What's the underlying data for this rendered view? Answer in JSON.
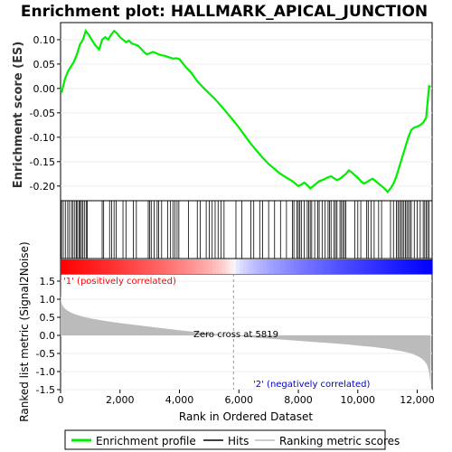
{
  "chart_data": [
    {
      "panel": "enrichment",
      "type": "line",
      "title": "Enrichment plot: HALLMARK_APICAL_JUNCTION",
      "ylabel": "Enrichment score (ES)",
      "xlim": [
        0,
        12500
      ],
      "ylim": [
        -0.23,
        0.135
      ],
      "yticks": [
        0.1,
        0.05,
        0.0,
        -0.05,
        -0.1,
        -0.15,
        -0.2
      ],
      "ytick_labels": [
        "0.10",
        "0.05",
        "0.00",
        "-0.05",
        "-0.10",
        "-0.15",
        "-0.20"
      ],
      "color": "#00ee00",
      "series": [
        {
          "name": "Enrichment profile",
          "x": [
            0,
            50,
            150,
            250,
            350,
            450,
            550,
            650,
            750,
            850,
            950,
            1050,
            1150,
            1300,
            1400,
            1500,
            1600,
            1700,
            1800,
            1900,
            2000,
            2100,
            2200,
            2300,
            2400,
            2500,
            2600,
            2700,
            2800,
            2900,
            3000,
            3100,
            3200,
            3300,
            3400,
            3500,
            3600,
            3700,
            3800,
            3900,
            4000,
            4200,
            4400,
            4600,
            4800,
            5000,
            5200,
            5400,
            5600,
            5819,
            6000,
            6200,
            6400,
            6600,
            6800,
            7000,
            7200,
            7400,
            7600,
            7800,
            7900,
            8000,
            8100,
            8200,
            8300,
            8400,
            8500,
            8600,
            8700,
            8800,
            8900,
            9000,
            9100,
            9200,
            9300,
            9400,
            9500,
            9600,
            9700,
            9800,
            9900,
            10000,
            10100,
            10200,
            10300,
            10400,
            10500,
            10600,
            10700,
            10800,
            10900,
            11000,
            11100,
            11200,
            11300,
            11400,
            11500,
            11600,
            11700,
            11800,
            11900,
            12000,
            12100,
            12200,
            12300,
            12400,
            12450
          ],
          "values": [
            0.0,
            -0.005,
            0.02,
            0.035,
            0.045,
            0.055,
            0.07,
            0.09,
            0.1,
            0.118,
            0.11,
            0.1,
            0.09,
            0.08,
            0.1,
            0.105,
            0.1,
            0.11,
            0.118,
            0.113,
            0.105,
            0.1,
            0.095,
            0.098,
            0.092,
            0.09,
            0.088,
            0.082,
            0.075,
            0.07,
            0.072,
            0.075,
            0.073,
            0.07,
            0.068,
            0.067,
            0.065,
            0.063,
            0.061,
            0.062,
            0.06,
            0.045,
            0.032,
            0.015,
            0.002,
            -0.01,
            -0.022,
            -0.036,
            -0.05,
            -0.066,
            -0.08,
            -0.097,
            -0.113,
            -0.128,
            -0.142,
            -0.155,
            -0.165,
            -0.175,
            -0.183,
            -0.19,
            -0.195,
            -0.2,
            -0.197,
            -0.193,
            -0.198,
            -0.205,
            -0.2,
            -0.195,
            -0.19,
            -0.188,
            -0.185,
            -0.182,
            -0.18,
            -0.184,
            -0.188,
            -0.185,
            -0.18,
            -0.175,
            -0.168,
            -0.172,
            -0.178,
            -0.183,
            -0.19,
            -0.195,
            -0.192,
            -0.188,
            -0.185,
            -0.19,
            -0.195,
            -0.2,
            -0.205,
            -0.212,
            -0.205,
            -0.195,
            -0.18,
            -0.16,
            -0.14,
            -0.12,
            -0.1,
            -0.085,
            -0.08,
            -0.078,
            -0.075,
            -0.07,
            -0.06,
            0.005,
            0.003
          ]
        }
      ]
    },
    {
      "panel": "hits",
      "type": "scatter",
      "xlim": [
        0,
        12500
      ],
      "hit_positions": [
        30,
        90,
        160,
        240,
        300,
        370,
        420,
        480,
        530,
        570,
        620,
        660,
        700,
        750,
        800,
        860,
        900,
        1400,
        1450,
        1650,
        1720,
        1800,
        1870,
        2100,
        2200,
        2450,
        2550,
        2950,
        3000,
        3050,
        3150,
        3250,
        3300,
        3400,
        3600,
        3700,
        3780,
        3850,
        3920,
        3980,
        4300,
        4600,
        4700,
        4900,
        5000,
        5100,
        5200,
        5300,
        5400,
        5500,
        5900,
        6100,
        6400,
        6500,
        6700,
        6800,
        7000,
        7200,
        7400,
        7600,
        7800,
        7850,
        7950,
        8000,
        8050,
        8100,
        8200,
        8300,
        8350,
        8400,
        8450,
        8550,
        8650,
        8700,
        8800,
        8900,
        9000,
        9050,
        9100,
        9200,
        9250,
        9300,
        9400,
        9450,
        9500,
        9550,
        9600,
        9900,
        10000,
        10100,
        10300,
        10350,
        10450,
        10550,
        10700,
        10800,
        11100,
        11200,
        11300,
        11350,
        11400,
        11450,
        11500,
        11550,
        11600,
        11650,
        11700,
        11750,
        11800,
        11900,
        12000,
        12100,
        12200,
        12250,
        12300,
        12350,
        12400
      ]
    },
    {
      "panel": "ranking",
      "type": "area",
      "xlabel": "Rank in Ordered Dataset",
      "ylabel": "Ranked list metric (Signal2Noise)",
      "xlim": [
        0,
        12500
      ],
      "ylim": [
        -1.5,
        1.7
      ],
      "xticks": [
        0,
        2000,
        4000,
        6000,
        8000,
        10000,
        12000
      ],
      "xtick_labels": [
        "0",
        "2,000",
        "4,000",
        "6,000",
        "8,000",
        "10,000",
        "12,000"
      ],
      "yticks": [
        1.5,
        1.0,
        0.5,
        0.0,
        -0.5,
        -1.0,
        -1.5
      ],
      "ytick_labels": [
        "1.5",
        "1.0",
        "0.5",
        "0.0",
        "-0.5",
        "-1.0",
        "-1.5"
      ],
      "color": "#bbbbbb",
      "x": [
        0,
        5,
        20,
        50,
        100,
        200,
        350,
        500,
        750,
        1000,
        1500,
        2000,
        2500,
        3000,
        3500,
        4000,
        4500,
        5000,
        5500,
        5819,
        6000,
        6500,
        7000,
        7500,
        8000,
        8500,
        9000,
        9500,
        10000,
        10500,
        11000,
        11500,
        11800,
        12000,
        12150,
        12250,
        12330,
        12380,
        12420,
        12450
      ],
      "values": [
        1.48,
        1.1,
        0.95,
        0.85,
        0.78,
        0.7,
        0.63,
        0.58,
        0.52,
        0.47,
        0.4,
        0.34,
        0.29,
        0.24,
        0.19,
        0.14,
        0.1,
        0.06,
        0.02,
        0.0,
        -0.02,
        -0.06,
        -0.09,
        -0.12,
        -0.15,
        -0.18,
        -0.21,
        -0.24,
        -0.28,
        -0.32,
        -0.37,
        -0.44,
        -0.5,
        -0.57,
        -0.64,
        -0.72,
        -0.82,
        -0.95,
        -1.15,
        -1.38
      ],
      "zero_cross_rank": 5819,
      "annotations": {
        "positive": "'1' (positively correlated)",
        "negative": "'2' (negatively correlated)",
        "zero_cross": "Zero cross at 5819"
      }
    }
  ],
  "legend": {
    "items": [
      {
        "label": "Enrichment profile",
        "color": "#00ee00"
      },
      {
        "label": "Hits",
        "color": "#000000"
      },
      {
        "label": "Ranking metric scores",
        "color": "#bbbbbb"
      }
    ]
  },
  "colors": {
    "positive_text": "#ff0000",
    "negative_text": "#0000cc",
    "grid": "#eeeeee"
  }
}
